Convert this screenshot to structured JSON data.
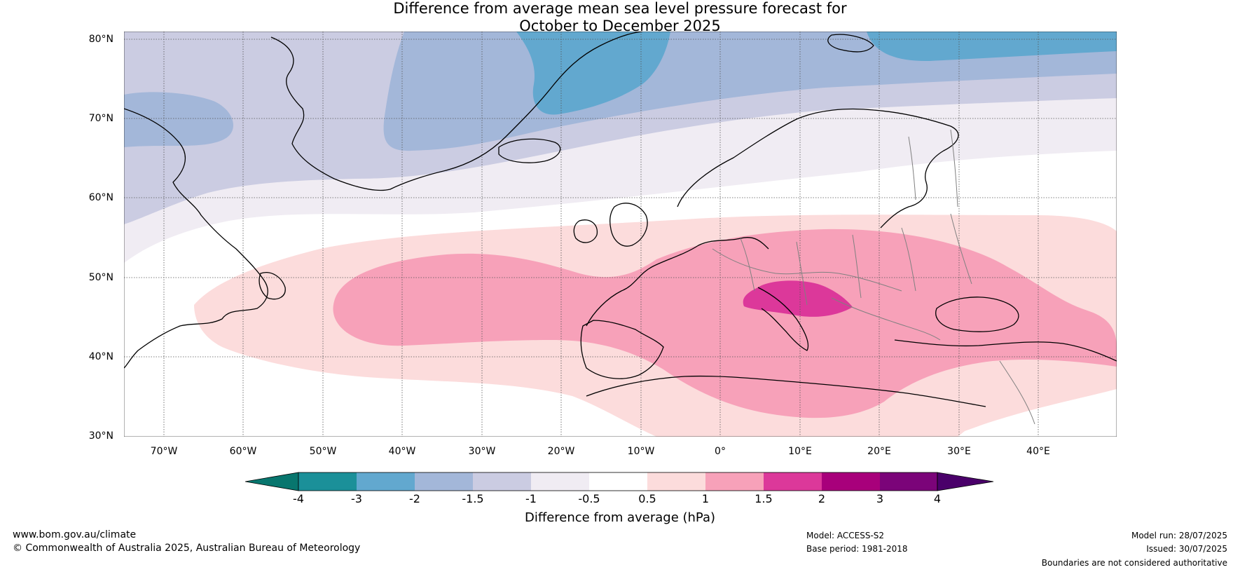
{
  "title_line1": "Difference from average mean sea level pressure forecast for",
  "title_line2": "October to December 2025",
  "lat_labels": [
    "80°N",
    "70°N",
    "60°N",
    "50°N",
    "40°N",
    "30°N"
  ],
  "lon_labels": [
    "70°W",
    "60°W",
    "50°W",
    "40°W",
    "30°W",
    "20°W",
    "10°W",
    "0°",
    "10°E",
    "20°E",
    "30°E",
    "40°E"
  ],
  "map": {
    "lon_range": [
      -75,
      50
    ],
    "lat_range": [
      30,
      81
    ],
    "ocean_color": "#ffffff",
    "land_outline_color": "#000000",
    "border_color": "#808080"
  },
  "colorbar": {
    "tick_labels": [
      "-4",
      "-3",
      "-2",
      "-1.5",
      "-1",
      "-0.5",
      "0.5",
      "1",
      "1.5",
      "2",
      "3",
      "4"
    ],
    "colors": [
      "#08766e",
      "#1b9099",
      "#62a8cf",
      "#a3b7d9",
      "#cbcce2",
      "#f0ecf3",
      "#ffffff",
      "#fcdcdc",
      "#f7a1b9",
      "#dc389a",
      "#a8007b",
      "#7b0479",
      "#4a006a"
    ],
    "label": "Difference from average (hPa)"
  },
  "footer": {
    "website": "www.bom.gov.au/climate",
    "copyright": "© Commonwealth of Australia 2025, Australian Bureau of Meteorology",
    "model": "Model: ACCESS-S2",
    "base_period": "Base period: 1981-2018",
    "model_run": "Model run: 28/07/2025",
    "issued": "Issued: 30/07/2025",
    "disclaimer": "Boundaries are not considered authoritative"
  }
}
